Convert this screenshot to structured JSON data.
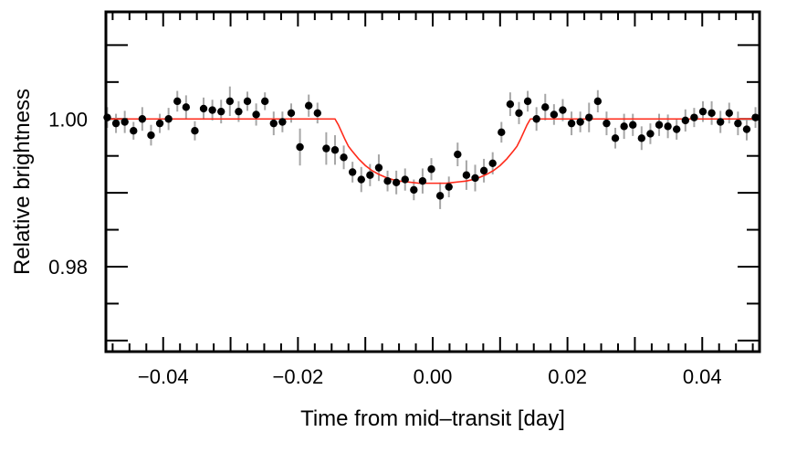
{
  "chart_data": {
    "type": "scatter",
    "title": "",
    "xlabel": "Time from mid–transit [day]",
    "ylabel": "Relative brightness",
    "xlim": [
      -0.0485,
      0.0485
    ],
    "ylim": [
      0.9685,
      1.0145
    ],
    "x_ticks_major": [
      -0.04,
      -0.02,
      0.0,
      0.02,
      0.04
    ],
    "x_tick_labels": [
      "−0.04",
      "−0.02",
      "0.00",
      "0.02",
      "0.04"
    ],
    "y_ticks_major": [
      0.98,
      1.0
    ],
    "y_tick_labels": [
      "0.98",
      "1.00"
    ],
    "grid": false,
    "colors": {
      "points": "#000000",
      "error_bars": "#a6a6a6",
      "model": "#ff2a1a",
      "frame": "#000000"
    },
    "series": [
      {
        "kind": "points_with_errorbars",
        "x": [
          -0.0483,
          -0.047,
          -0.0457,
          -0.0444,
          -0.0431,
          -0.0418,
          -0.0405,
          -0.0392,
          -0.0379,
          -0.0366,
          -0.0353,
          -0.034,
          -0.0327,
          -0.0314,
          -0.0301,
          -0.0288,
          -0.0275,
          -0.0262,
          -0.0249,
          -0.0236,
          -0.0223,
          -0.021,
          -0.0197,
          -0.0184,
          -0.0171,
          -0.0158,
          -0.0145,
          -0.0132,
          -0.0119,
          -0.0106,
          -0.0093,
          -0.008,
          -0.0067,
          -0.0054,
          -0.0041,
          -0.0028,
          -0.0015,
          -0.0002,
          0.0011,
          0.0024,
          0.0037,
          0.005,
          0.0063,
          0.0076,
          0.0089,
          0.0102,
          0.0115,
          0.0128,
          0.0141,
          0.0154,
          0.0167,
          0.018,
          0.0193,
          0.0206,
          0.0219,
          0.0232,
          0.0245,
          0.0258,
          0.0271,
          0.0284,
          0.0297,
          0.031,
          0.0323,
          0.0336,
          0.0349,
          0.0362,
          0.0375,
          0.0388,
          0.0401,
          0.0414,
          0.0427,
          0.044,
          0.0453,
          0.0466,
          0.0479
        ],
        "y": [
          1.0002,
          0.9994,
          0.9996,
          0.9984,
          1.0,
          0.9978,
          0.9994,
          1.0,
          1.0024,
          1.0016,
          0.9984,
          1.0014,
          1.0012,
          1.001,
          1.0024,
          1.001,
          1.0024,
          1.0006,
          1.0024,
          0.9994,
          0.9996,
          1.0008,
          0.9962,
          1.0018,
          1.0008,
          0.996,
          0.9958,
          0.9948,
          0.9928,
          0.9918,
          0.9924,
          0.9934,
          0.9916,
          0.9914,
          0.9918,
          0.9904,
          0.9916,
          0.9932,
          0.9896,
          0.9908,
          0.9952,
          0.9924,
          0.992,
          0.993,
          0.994,
          0.9982,
          1.002,
          1.0008,
          1.0024,
          1.0,
          1.0016,
          1.0006,
          1.0012,
          0.9994,
          0.9996,
          1.0002,
          1.0024,
          0.9994,
          0.9974,
          0.999,
          0.9992,
          0.9974,
          0.998,
          0.9992,
          0.999,
          0.9986,
          0.9998,
          1.0002,
          1.001,
          1.0008,
          0.9996,
          1.0008,
          0.9994,
          0.9986,
          1.0002
        ],
        "yerr": [
          0.0014,
          0.0013,
          0.0015,
          0.0012,
          0.0016,
          0.0014,
          0.0013,
          0.0015,
          0.0014,
          0.0016,
          0.0013,
          0.0015,
          0.0014,
          0.0016,
          0.002,
          0.0014,
          0.0013,
          0.0015,
          0.0012,
          0.0016,
          0.0014,
          0.0013,
          0.0025,
          0.0015,
          0.0014,
          0.0022,
          0.002,
          0.0016,
          0.0014,
          0.0017,
          0.0015,
          0.0018,
          0.0014,
          0.0016,
          0.0015,
          0.0014,
          0.0017,
          0.0015,
          0.0018,
          0.0014,
          0.0016,
          0.002,
          0.0018,
          0.0016,
          0.0015,
          0.0014,
          0.0016,
          0.0015,
          0.0014,
          0.0016,
          0.0018,
          0.0014,
          0.0015,
          0.0016,
          0.0014,
          0.002,
          0.0015,
          0.0016,
          0.0014,
          0.0017,
          0.0015,
          0.0016,
          0.0014,
          0.0015,
          0.0016,
          0.0014,
          0.0015,
          0.0013,
          0.0014,
          0.0016,
          0.0015,
          0.0014,
          0.0016,
          0.0015,
          0.0014
        ]
      },
      {
        "kind": "model_curve",
        "x": [
          -0.0485,
          -0.0145,
          -0.014,
          -0.0135,
          -0.013,
          -0.0125,
          -0.012,
          -0.011,
          -0.01,
          -0.009,
          -0.008,
          -0.007,
          -0.006,
          -0.005,
          -0.004,
          -0.003,
          -0.002,
          -0.001,
          0.0,
          0.001,
          0.002,
          0.003,
          0.004,
          0.005,
          0.006,
          0.007,
          0.008,
          0.009,
          0.01,
          0.011,
          0.012,
          0.0125,
          0.013,
          0.0135,
          0.014,
          0.0145,
          0.0485
        ],
        "y": [
          1.0,
          1.0,
          0.9992,
          0.9982,
          0.9972,
          0.9963,
          0.9957,
          0.9946,
          0.9937,
          0.993,
          0.9925,
          0.9921,
          0.9918,
          0.9916,
          0.9915,
          0.9914,
          0.9913,
          0.9913,
          0.9913,
          0.9913,
          0.9913,
          0.9914,
          0.9915,
          0.9916,
          0.9918,
          0.9921,
          0.9925,
          0.993,
          0.9937,
          0.9946,
          0.9957,
          0.9963,
          0.9972,
          0.9982,
          0.9992,
          1.0,
          1.0
        ]
      }
    ]
  }
}
